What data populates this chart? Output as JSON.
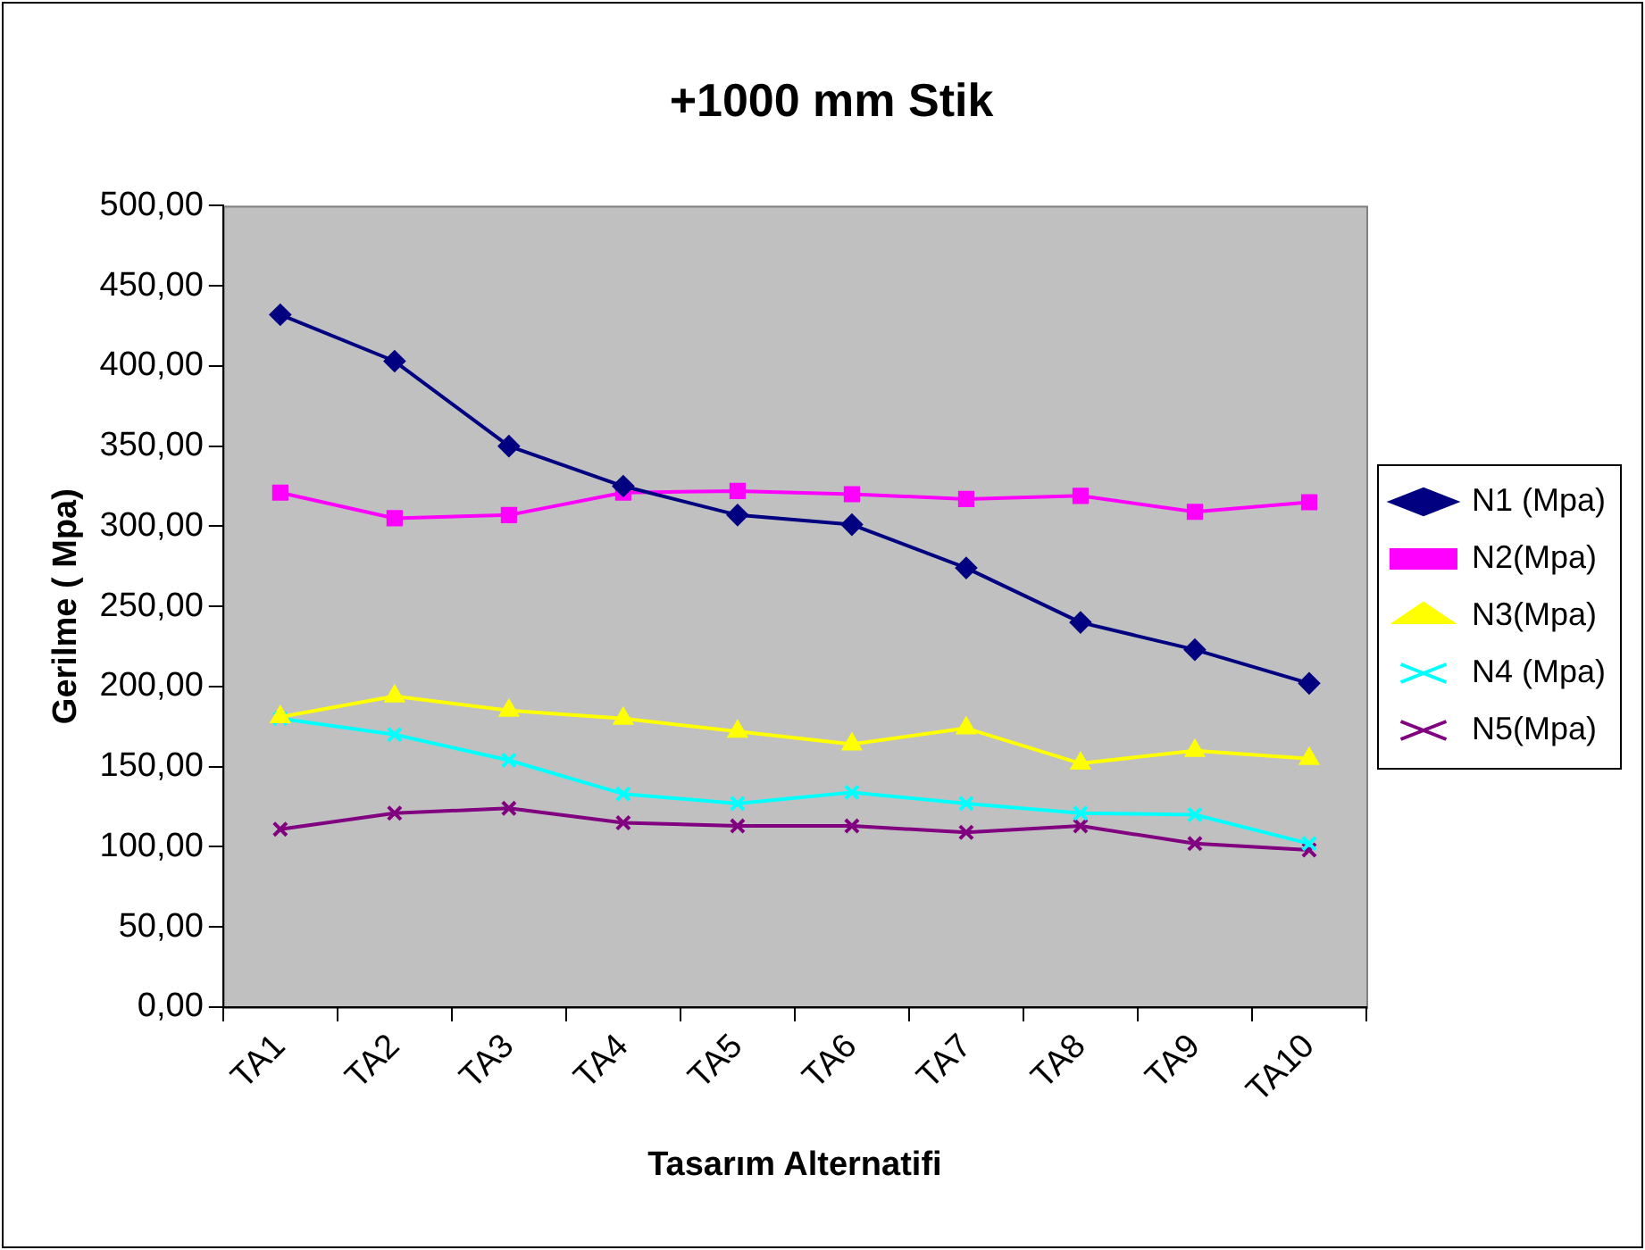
{
  "chart_data": {
    "type": "line",
    "title": "+1000 mm Stik",
    "xlabel": "Tasarım Alternatifi",
    "ylabel": "Gerilme ( Mpa)",
    "categories": [
      "TA1",
      "TA2",
      "TA3",
      "TA4",
      "TA5",
      "TA6",
      "TA7",
      "TA8",
      "TA9",
      "TA10"
    ],
    "series": [
      {
        "name": "N1 (Mpa)",
        "color": "#000080",
        "marker": "diamond",
        "values": [
          432,
          403,
          350,
          325,
          307,
          301,
          274,
          240,
          223,
          202
        ]
      },
      {
        "name": "N2(Mpa)",
        "color": "#ff00ff",
        "marker": "square",
        "values": [
          321,
          305,
          307,
          321,
          322,
          320,
          317,
          319,
          309,
          315
        ]
      },
      {
        "name": "N3(Mpa)",
        "color": "#ffff00",
        "marker": "triangle",
        "values": [
          181,
          194,
          185,
          180,
          172,
          164,
          174,
          152,
          160,
          155
        ]
      },
      {
        "name": "N4 (Mpa)",
        "color": "#00ffff",
        "marker": "cross",
        "values": [
          180,
          170,
          154,
          133,
          127,
          134,
          127,
          121,
          120,
          102
        ]
      },
      {
        "name": "N5(Mpa)",
        "color": "#800080",
        "marker": "cross",
        "values": [
          111,
          121,
          124,
          115,
          113,
          113,
          109,
          113,
          102,
          98
        ]
      }
    ],
    "ylim": [
      0,
      500
    ],
    "yticks": [
      {
        "value": 0,
        "label": "0,00"
      },
      {
        "value": 50,
        "label": "50,00"
      },
      {
        "value": 100,
        "label": "100,00"
      },
      {
        "value": 150,
        "label": "150,00"
      },
      {
        "value": 200,
        "label": "200,00"
      },
      {
        "value": 250,
        "label": "250,00"
      },
      {
        "value": 300,
        "label": "300,00"
      },
      {
        "value": 350,
        "label": "350,00"
      },
      {
        "value": 400,
        "label": "400,00"
      },
      {
        "value": 450,
        "label": "450,00"
      },
      {
        "value": 500,
        "label": "500,00"
      }
    ],
    "grid": false,
    "legend": "right",
    "line_style": "solid"
  }
}
